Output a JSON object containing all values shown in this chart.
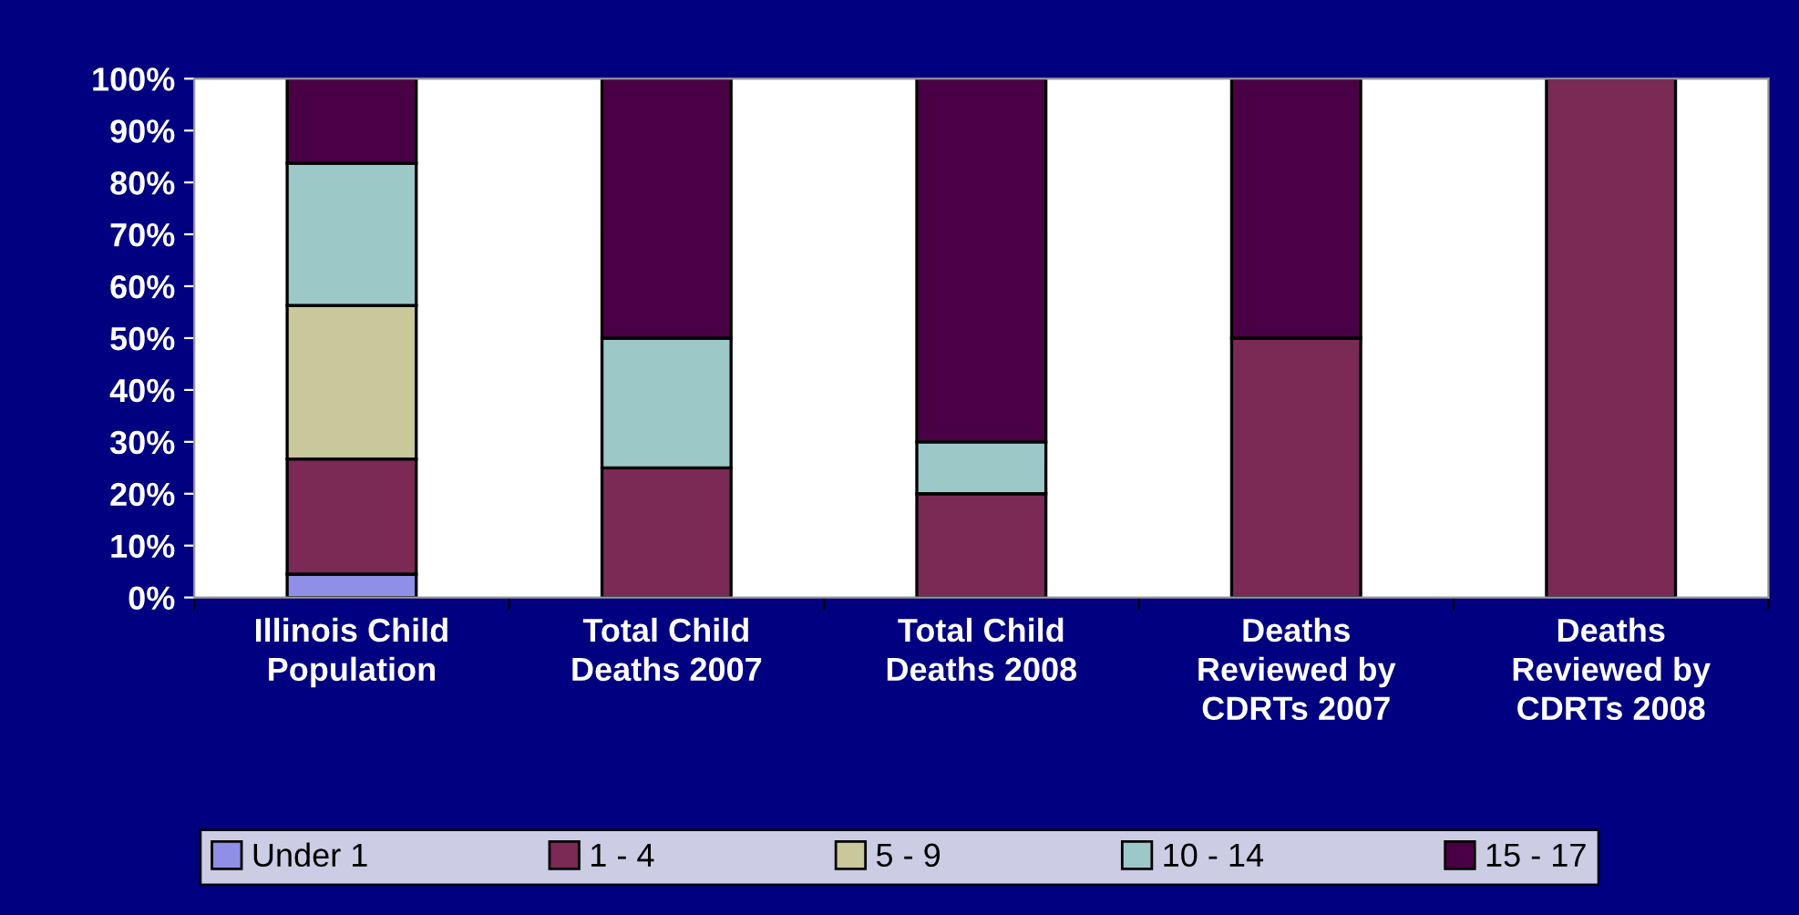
{
  "chart_data": {
    "type": "bar",
    "stacked": true,
    "categories": [
      "Illinois Child\nPopulation",
      "Total Child\nDeaths 2007",
      "Total Child\nDeaths 2008",
      "Deaths\nReviewed by\nCDRTs 2007",
      "Deaths\nReviewed by\nCDRTs 2008"
    ],
    "series": [
      {
        "name": "Under 1",
        "color": "#8f8fe8",
        "values": [
          4.5,
          0,
          0,
          0,
          0
        ]
      },
      {
        "name": "1 - 4",
        "color": "#7a2a55",
        "values": [
          22.2,
          25,
          20,
          50,
          100
        ]
      },
      {
        "name": "5 - 9",
        "color": "#c8c89a",
        "values": [
          29.6,
          0,
          0,
          0,
          0
        ]
      },
      {
        "name": "10 - 14",
        "color": "#9cc8c8",
        "values": [
          27.4,
          25,
          10,
          0,
          0
        ]
      },
      {
        "name": "15 - 17",
        "color": "#4a0045",
        "values": [
          16.3,
          50,
          70,
          50,
          0
        ]
      }
    ],
    "ylim": [
      0,
      100
    ],
    "yticks": [
      {
        "value": 0,
        "label": "0%"
      },
      {
        "value": 10,
        "label": "10%"
      },
      {
        "value": 20,
        "label": "20%"
      },
      {
        "value": 30,
        "label": "30%"
      },
      {
        "value": 40,
        "label": "40%"
      },
      {
        "value": 50,
        "label": "50%"
      },
      {
        "value": 60,
        "label": "60%"
      },
      {
        "value": 70,
        "label": "70%"
      },
      {
        "value": 80,
        "label": "80%"
      },
      {
        "value": 90,
        "label": "90%"
      },
      {
        "value": 100,
        "label": "100%"
      }
    ],
    "grid": false,
    "legend": "bottom"
  }
}
